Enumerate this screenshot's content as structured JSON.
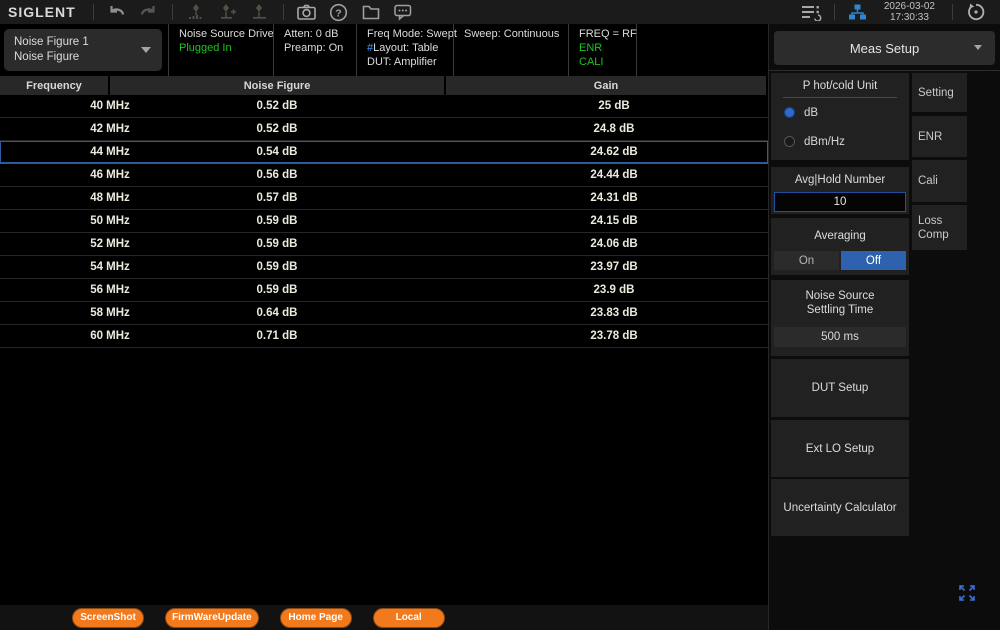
{
  "toolbar": {
    "brand": "SIGLENT",
    "datetime": {
      "date": "2026-03-02",
      "time": "17:30:33"
    },
    "icons": [
      "undo-icon",
      "redo-icon",
      "peak-marker-icon",
      "marker-add-icon",
      "marker-to-icon",
      "camera-icon",
      "help-icon",
      "folder-icon",
      "chat-icon",
      "menu-list-icon",
      "lan-icon",
      "history-icon"
    ]
  },
  "status_bar": {
    "selector": {
      "line1": "Noise Figure 1",
      "line2": "Noise Figure"
    },
    "segments": [
      {
        "name": "noise-source-drive",
        "lines": [
          [
            {
              "t": "Noise Source Drive"
            }
          ],
          [
            {
              "t": "Plugged In",
              "c": "green"
            }
          ]
        ]
      },
      {
        "name": "atten-preamp",
        "lines": [
          [
            {
              "t": "Atten: 0 dB"
            }
          ],
          [
            {
              "t": "Preamp: On"
            }
          ]
        ]
      },
      {
        "name": "freq-mode",
        "lines": [
          [
            {
              "t": "Freq Mode: Swept"
            }
          ],
          [
            {
              "t": "#",
              "c": "blue"
            },
            {
              "t": "Layout: Table"
            }
          ],
          [
            {
              "t": "DUT: Amplifier"
            }
          ]
        ]
      },
      {
        "name": "sweep",
        "lines": [
          [
            {
              "t": "Sweep: Continuous"
            }
          ]
        ]
      },
      {
        "name": "freq-rf",
        "lines": [
          [
            {
              "t": "FREQ = RF"
            }
          ],
          [
            {
              "t": "ENR",
              "c": "green"
            }
          ],
          [
            {
              "t": "CALI",
              "c": "green"
            }
          ]
        ]
      }
    ]
  },
  "table": {
    "columns": [
      "Frequency",
      "Noise Figure",
      "Gain"
    ],
    "rows": [
      {
        "frequency": "40 MHz",
        "noise_figure": "0.52 dB",
        "gain": "25 dB",
        "selected": false
      },
      {
        "frequency": "42 MHz",
        "noise_figure": "0.52 dB",
        "gain": "24.8 dB",
        "selected": false
      },
      {
        "frequency": "44 MHz",
        "noise_figure": "0.54 dB",
        "gain": "24.62 dB",
        "selected": true
      },
      {
        "frequency": "46 MHz",
        "noise_figure": "0.56 dB",
        "gain": "24.44 dB",
        "selected": false
      },
      {
        "frequency": "48 MHz",
        "noise_figure": "0.57 dB",
        "gain": "24.31 dB",
        "selected": false
      },
      {
        "frequency": "50 MHz",
        "noise_figure": "0.59 dB",
        "gain": "24.15 dB",
        "selected": false
      },
      {
        "frequency": "52 MHz",
        "noise_figure": "0.59 dB",
        "gain": "24.06 dB",
        "selected": false
      },
      {
        "frequency": "54 MHz",
        "noise_figure": "0.59 dB",
        "gain": "23.97 dB",
        "selected": false
      },
      {
        "frequency": "56 MHz",
        "noise_figure": "0.59 dB",
        "gain": "23.9 dB",
        "selected": false
      },
      {
        "frequency": "58 MHz",
        "noise_figure": "0.64 dB",
        "gain": "23.83 dB",
        "selected": false
      },
      {
        "frequency": "60 MHz",
        "noise_figure": "0.71 dB",
        "gain": "23.78 dB",
        "selected": false
      }
    ]
  },
  "side_panel": {
    "title": "Meas Setup",
    "unit": {
      "label": "P hot/cold Unit",
      "options": [
        {
          "label": "dB",
          "selected": true
        },
        {
          "label": "dBm/Hz",
          "selected": false
        }
      ]
    },
    "avg_hold": {
      "label": "Avg|Hold Number",
      "value": "10"
    },
    "averaging": {
      "label": "Averaging",
      "options": [
        "On",
        "Off"
      ],
      "active": "Off"
    },
    "settling": {
      "label_line1": "Noise Source",
      "label_line2": "Settling Time",
      "value": "500 ms"
    },
    "buttons": [
      "DUT Setup",
      "Ext LO Setup",
      "Uncertainty Calculator"
    ],
    "tabs": [
      "Setting",
      "ENR",
      "Cali",
      "Loss Comp"
    ]
  },
  "bottom_bar": {
    "buttons": [
      "ScreenShot",
      "FirmWareUpdate",
      "Home Page",
      "Local"
    ]
  },
  "colors": {
    "accent_blue": "#2e62ae",
    "selected_row_border": "#2d5c9e",
    "green": "#1fc41f",
    "hash_blue": "#3f9bff",
    "orange": "#f2791c",
    "lan_blue": "#2e86d0"
  }
}
